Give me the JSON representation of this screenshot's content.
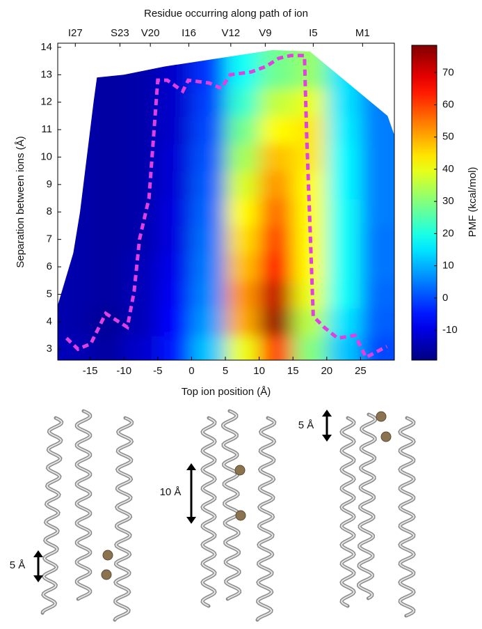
{
  "chart_data": {
    "type": "contour",
    "title": "Residue occurring along path of ion",
    "xlabel": "Top ion position (Å)",
    "ylabel": "Separation between ions (Å)",
    "colorbar_label": "PMF (kcal/mol)",
    "colormap": "jet",
    "xlim": [
      -19.8,
      30
    ],
    "ylim": [
      2.6,
      14.15
    ],
    "xticks": [
      -15,
      -10,
      -5,
      0,
      5,
      10,
      15,
      20,
      25
    ],
    "yticks": [
      3,
      4,
      5,
      6,
      7,
      8,
      9,
      10,
      11,
      12,
      13,
      14
    ],
    "x2ticks": [
      {
        "value": -17.2,
        "label": "I27"
      },
      {
        "value": -10.6,
        "label": "S23"
      },
      {
        "value": -6.1,
        "label": "V20"
      },
      {
        "value": -0.4,
        "label": "I16"
      },
      {
        "value": 5.8,
        "label": "V12"
      },
      {
        "value": 10.9,
        "label": "V9"
      },
      {
        "value": 18,
        "label": "I5"
      },
      {
        "value": 25.3,
        "label": "M1"
      }
    ],
    "clim": [
      -19.3,
      78.5
    ],
    "cticks": [
      -10,
      0,
      10,
      20,
      30,
      40,
      50,
      60,
      70
    ],
    "x": [
      -17.5,
      -12.5,
      -7.5,
      -2.5,
      2.5,
      7.5,
      12.5,
      17.5,
      22.5,
      27.5
    ],
    "y": [
      3,
      4,
      5,
      6,
      7,
      8,
      9,
      10,
      11,
      12,
      13
    ],
    "z": [
      [
        -14,
        -16,
        -12,
        -5,
        12,
        40,
        60,
        30,
        12,
        0
      ],
      [
        -15,
        -17,
        -14,
        -7,
        8,
        50,
        76,
        35,
        15,
        2
      ],
      [
        -15,
        -16,
        -14,
        -8,
        6,
        52,
        72,
        40,
        18,
        3
      ],
      [
        -15,
        -16,
        -14,
        -9,
        5,
        48,
        66,
        42,
        18,
        4
      ],
      [
        -15,
        -16,
        -15,
        -10,
        4,
        45,
        60,
        42,
        18,
        4
      ],
      [
        -15,
        -16,
        -15,
        -10,
        3,
        42,
        56,
        42,
        18,
        5
      ],
      [
        -15,
        -16,
        -15,
        -11,
        2,
        38,
        52,
        42,
        17,
        5
      ],
      [
        -15,
        -16,
        -15,
        -11,
        1,
        33,
        48,
        44,
        17,
        5
      ],
      [
        -15,
        -16,
        -15,
        -12,
        0,
        28,
        42,
        44,
        16,
        5
      ],
      [
        -15,
        -16,
        -15,
        -12,
        -1,
        22,
        36,
        40,
        15,
        5
      ],
      [
        -15,
        -16,
        -15,
        -12,
        -2,
        18,
        28,
        32,
        15,
        5
      ]
    ],
    "path": {
      "color": "#e040e0",
      "x": [
        -18.5,
        -16.8,
        -14.9,
        -12.7,
        -9.5,
        -8.5,
        -7.7,
        -6.3,
        -5,
        -3.6,
        -1.3,
        -0.5,
        2.6,
        4.4,
        5.7,
        8.8,
        11,
        12.9,
        14.7,
        16.7,
        17,
        18,
        19.6,
        21.6,
        24.2,
        25.8,
        28.9
      ],
      "y": [
        3.4,
        3.0,
        3.2,
        4.3,
        3.8,
        5.1,
        7.0,
        8.5,
        12.8,
        12.8,
        12.4,
        12.8,
        12.7,
        12.5,
        13.0,
        13.1,
        13.3,
        13.6,
        13.7,
        13.7,
        11,
        4.2,
        3.8,
        3.4,
        3.5,
        2.7,
        3.1
      ]
    }
  },
  "panels": [
    {
      "label": "5 Å"
    },
    {
      "label": "10 Å"
    },
    {
      "label": "5 Å"
    }
  ]
}
